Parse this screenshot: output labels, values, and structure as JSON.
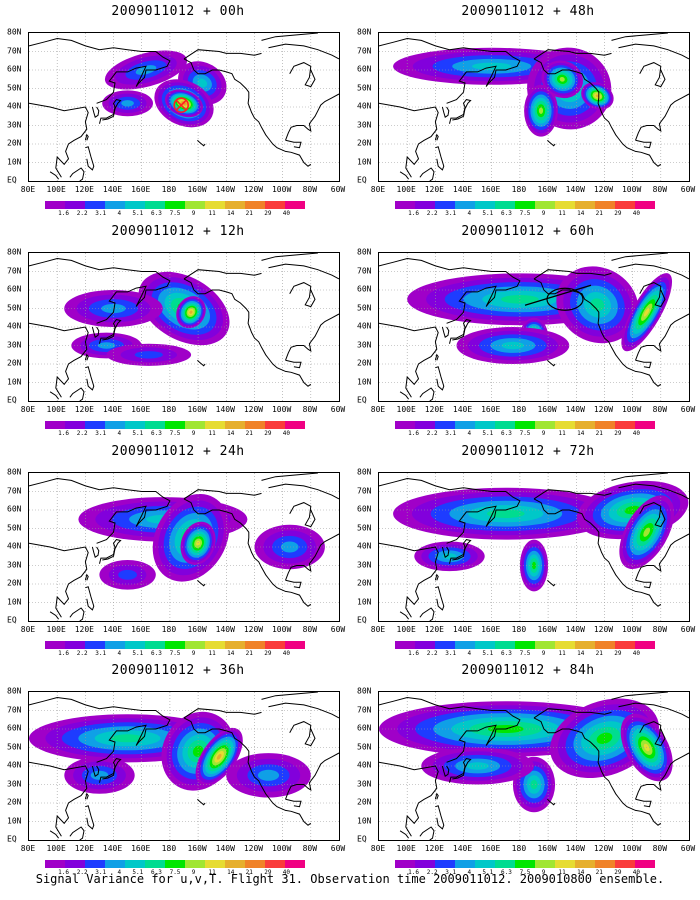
{
  "panels": [
    {
      "title": "2009011012 + 00h"
    },
    {
      "title": "2009011012 + 48h"
    },
    {
      "title": "2009011012 + 12h"
    },
    {
      "title": "2009011012 + 60h"
    },
    {
      "title": "2009011012 + 24h"
    },
    {
      "title": "2009011012 + 72h"
    },
    {
      "title": "2009011012 + 36h"
    },
    {
      "title": "2009011012 + 84h"
    }
  ],
  "lat_labels": [
    "80N",
    "70N",
    "60N",
    "50N",
    "40N",
    "30N",
    "20N",
    "10N",
    "EQ"
  ],
  "lon_labels": [
    "80E",
    "100E",
    "120E",
    "140E",
    "160E",
    "180",
    "160W",
    "140W",
    "120W",
    "100W",
    "80W",
    "60W"
  ],
  "colorbar": {
    "labels": [
      "1.6",
      "2.2",
      "3.1",
      "4",
      "5.1",
      "6.3",
      "7.5",
      "9",
      "11",
      "14",
      "21",
      "29",
      "40"
    ],
    "colors": [
      "#a000c8",
      "#8200dc",
      "#1e3cff",
      "#0fa0e6",
      "#00c8c8",
      "#00dc90",
      "#00e600",
      "#a0e632",
      "#e6dc32",
      "#e6af2d",
      "#f08228",
      "#fa3c3c",
      "#f00082"
    ]
  },
  "footer": "Signal Variance for u,v,T. Flight 31. Observation time 2009011012. 2009010800 ensemble."
}
